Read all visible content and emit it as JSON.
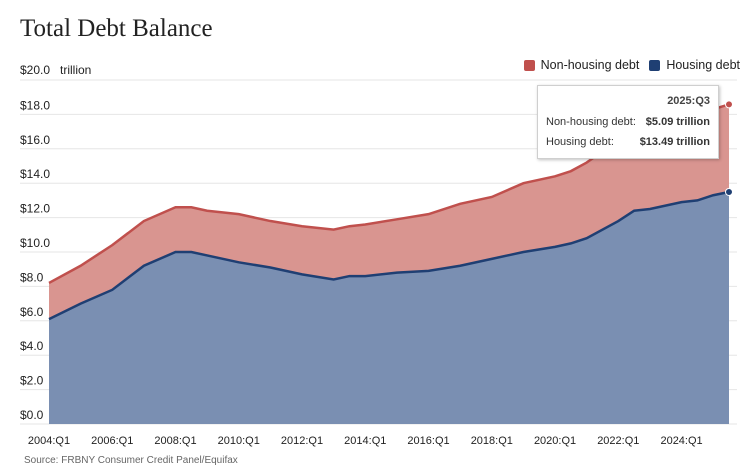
{
  "title": "Total Debt Balance",
  "unit_label": "trillion",
  "source": "Source: FRBNY Consumer Credit Panel/Equifax",
  "legend": [
    {
      "label": "Non-housing debt",
      "color": "#c0504d"
    },
    {
      "label": "Housing debt",
      "color": "#1f3f73"
    }
  ],
  "tooltip": {
    "period": "2025:Q3",
    "rows": [
      {
        "label": "Non-housing debt:",
        "value": "$5.09 trillion"
      },
      {
        "label": "Housing debt:",
        "value": "$13.49 trillion"
      }
    ]
  },
  "chart_data": {
    "type": "area",
    "stacked": true,
    "title": "Total Debt Balance",
    "ylim": [
      0,
      20
    ],
    "y_ticks": [
      "$0.0",
      "$2.0",
      "$4.0",
      "$6.0",
      "$8.0",
      "$10.0",
      "$12.0",
      "$14.0",
      "$16.0",
      "$18.0",
      "$20.0"
    ],
    "x_ticks": [
      "2004:Q1",
      "2006:Q1",
      "2008:Q1",
      "2010:Q1",
      "2012:Q1",
      "2014:Q1",
      "2016:Q1",
      "2018:Q1",
      "2020:Q1",
      "2022:Q1",
      "2024:Q1"
    ],
    "grid": true,
    "legend_position": "top-right",
    "x": [
      2004.0,
      2005.0,
      2006.0,
      2007.0,
      2008.0,
      2008.5,
      2009.0,
      2010.0,
      2011.0,
      2012.0,
      2013.0,
      2013.5,
      2014.0,
      2015.0,
      2016.0,
      2017.0,
      2018.0,
      2019.0,
      2020.0,
      2020.5,
      2021.0,
      2022.0,
      2022.5,
      2023.0,
      2024.0,
      2024.5,
      2025.0,
      2025.5
    ],
    "series": [
      {
        "name": "Housing debt",
        "color": "#1f3f73",
        "fill": "#7a8fb2",
        "values": [
          6.1,
          7.0,
          7.8,
          9.2,
          10.0,
          10.0,
          9.8,
          9.4,
          9.1,
          8.7,
          8.4,
          8.6,
          8.6,
          8.8,
          8.9,
          9.2,
          9.6,
          10.0,
          10.3,
          10.5,
          10.8,
          11.8,
          12.4,
          12.5,
          12.9,
          13.0,
          13.3,
          13.49
        ]
      },
      {
        "name": "Non-housing debt",
        "color": "#c0504d",
        "fill": "#d99590",
        "values": [
          2.1,
          2.2,
          2.6,
          2.6,
          2.6,
          2.6,
          2.6,
          2.8,
          2.7,
          2.8,
          2.9,
          2.9,
          3.0,
          3.1,
          3.3,
          3.6,
          3.6,
          4.0,
          4.1,
          4.2,
          4.4,
          4.7,
          4.7,
          4.9,
          4.9,
          5.0,
          5.0,
          5.09
        ]
      }
    ]
  }
}
